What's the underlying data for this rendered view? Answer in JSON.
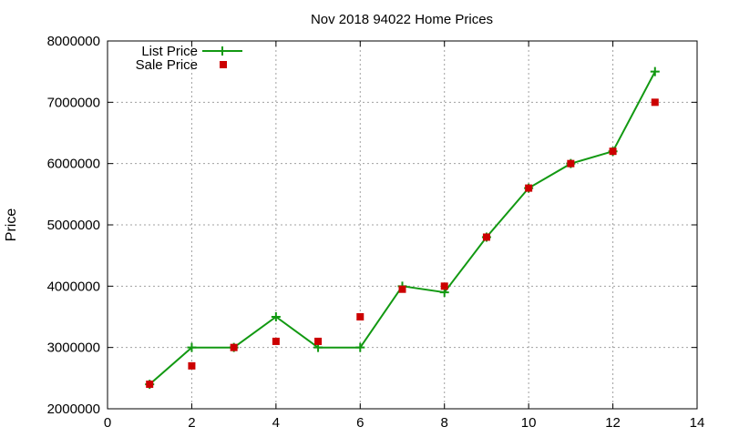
{
  "chart_data": {
    "type": "line",
    "title": "Nov 2018 94022 Home Prices",
    "xlabel": "",
    "ylabel": "Price",
    "xlim": [
      0,
      14
    ],
    "ylim": [
      2000000,
      8000000
    ],
    "x_ticks": [
      "0",
      "2",
      "4",
      "6",
      "8",
      "10",
      "12",
      "14"
    ],
    "y_ticks": [
      "2000000",
      "3000000",
      "4000000",
      "5000000",
      "6000000",
      "7000000",
      "8000000"
    ],
    "grid": true,
    "legend_position": "top-left",
    "series": [
      {
        "name": "List Price",
        "style": "line-with-plus-markers",
        "color": "#129912",
        "x": [
          1,
          2,
          3,
          4,
          5,
          6,
          7,
          8,
          9,
          10,
          11,
          12,
          13
        ],
        "y": [
          2400000,
          3000000,
          3000000,
          3500000,
          3000000,
          3000000,
          4000000,
          3900000,
          4800000,
          5600000,
          6000000,
          6200000,
          7500000
        ]
      },
      {
        "name": "Sale Price",
        "style": "square-markers",
        "color": "#cc0000",
        "x": [
          1,
          2,
          3,
          4,
          5,
          6,
          7,
          8,
          9,
          10,
          11,
          12,
          13
        ],
        "y": [
          2400000,
          2700000,
          3000000,
          3100000,
          3100000,
          3500000,
          3950000,
          4000000,
          4800000,
          5600000,
          6000000,
          6200000,
          7000000
        ]
      }
    ]
  }
}
